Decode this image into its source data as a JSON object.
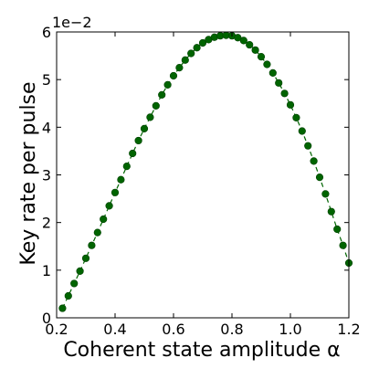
{
  "chart_data": {
    "type": "line",
    "xlabel": "Coherent state amplitude α",
    "ylabel": "Key rate per pulse",
    "scale_label": "1e−2",
    "xlim": [
      0.2,
      1.2
    ],
    "ylim": [
      0,
      6
    ],
    "xticks": [
      0.2,
      0.4,
      0.6,
      0.8,
      1.0,
      1.2
    ],
    "xtick_labels": [
      "0.2",
      "0.4",
      "0.6",
      "0.8",
      "1.0",
      "1.2"
    ],
    "yticks": [
      0,
      1,
      2,
      3,
      4,
      5,
      6
    ],
    "ytick_labels": [
      "0",
      "1",
      "2",
      "3",
      "4",
      "5",
      "6"
    ],
    "grid": false,
    "series": [
      {
        "color": "#006400",
        "marker": "circle",
        "line_style": "dashed",
        "x": [
          0.22,
          0.24,
          0.26,
          0.28,
          0.3,
          0.32,
          0.34,
          0.36,
          0.38,
          0.4,
          0.42,
          0.44,
          0.46,
          0.48,
          0.5,
          0.52,
          0.54,
          0.56,
          0.58,
          0.6,
          0.62,
          0.64,
          0.66,
          0.68,
          0.7,
          0.72,
          0.74,
          0.76,
          0.78,
          0.8,
          0.82,
          0.84,
          0.86,
          0.88,
          0.9,
          0.92,
          0.94,
          0.96,
          0.98,
          1.0,
          1.02,
          1.04,
          1.06,
          1.08,
          1.1,
          1.12,
          1.14,
          1.16,
          1.18,
          1.2
        ],
        "y": [
          0.2,
          0.46,
          0.72,
          0.98,
          1.25,
          1.52,
          1.79,
          2.07,
          2.35,
          2.63,
          2.9,
          3.18,
          3.45,
          3.72,
          3.97,
          4.21,
          4.45,
          4.68,
          4.89,
          5.08,
          5.25,
          5.41,
          5.55,
          5.67,
          5.77,
          5.84,
          5.89,
          5.92,
          5.93,
          5.92,
          5.88,
          5.82,
          5.73,
          5.62,
          5.48,
          5.32,
          5.14,
          4.93,
          4.71,
          4.47,
          4.2,
          3.92,
          3.61,
          3.29,
          2.95,
          2.6,
          2.23,
          1.86,
          1.52,
          1.15
        ]
      }
    ]
  }
}
